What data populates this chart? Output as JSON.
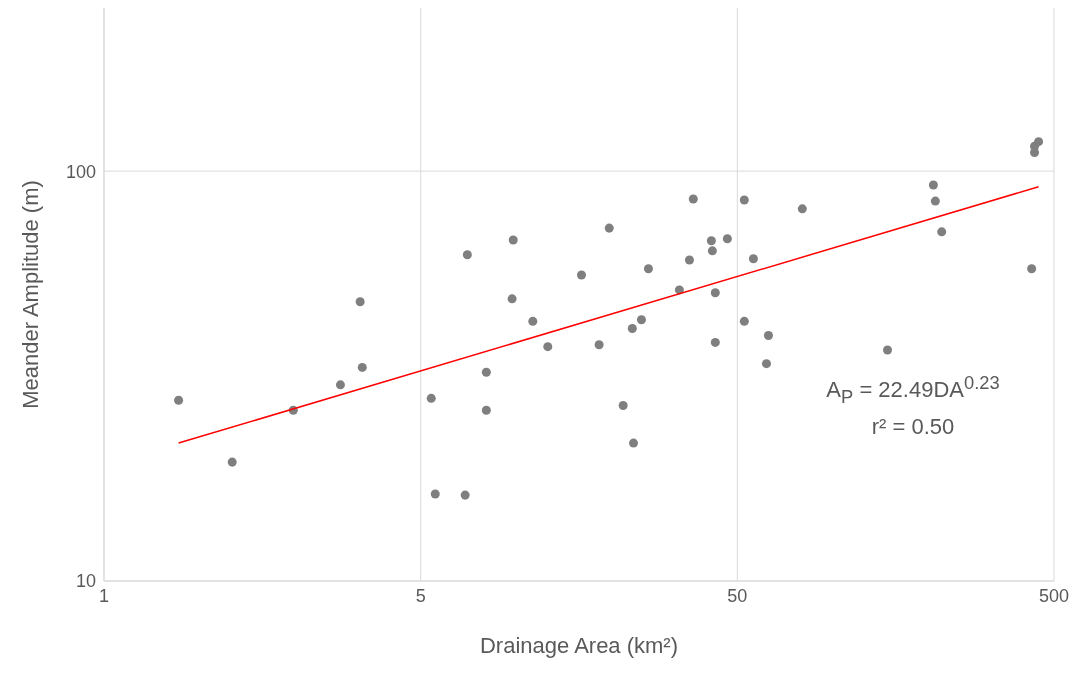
{
  "chart_data": {
    "type": "scatter",
    "xlabel": "Drainage Area (km²)",
    "ylabel": "Meander Amplitude (m)",
    "log": "xy",
    "xlim": [
      0.5,
      500
    ],
    "xticks": [
      {
        "value": 0.5,
        "label": "1"
      },
      5,
      50,
      500
    ],
    "ylim": [
      10,
      250
    ],
    "yticks": [
      10,
      100
    ],
    "grid": true,
    "annotations": [
      "A$_{P}$ = 22.49DA$^{0.23}$",
      "r² = 0.50"
    ],
    "series": [
      {
        "color": "#7f7f7f",
        "marker": "circle",
        "x": [
          0.86,
          1.27,
          1.98,
          2.79,
          3.22,
          3.27,
          5.4,
          5.56,
          6.91,
          7.02,
          8.06,
          8.06,
          9.72,
          9.8,
          11.3,
          12.6,
          16.1,
          18.3,
          19.7,
          21.8,
          23.3,
          23.5,
          24.9,
          26.2,
          32.8,
          35.3,
          36.3,
          41.4,
          41.7,
          42.6,
          42.6,
          46.5,
          52.6,
          52.6,
          56.2,
          61.8,
          62.7,
          80.2,
          149,
          208,
          211,
          221,
          425,
          434,
          434,
          447
        ],
        "values": [
          27.6,
          19.5,
          26.1,
          30.1,
          48,
          33.2,
          27.9,
          16.3,
          16.2,
          62.5,
          32.3,
          26.1,
          48.8,
          67.9,
          43,
          37.3,
          55.8,
          37.7,
          72.6,
          26.8,
          41.3,
          21.7,
          43.4,
          57.8,
          51.3,
          60.7,
          85.5,
          67.6,
          63.9,
          50.5,
          38.2,
          68.4,
          85,
          43,
          61.1,
          33.9,
          39.7,
          80.9,
          36.6,
          92.5,
          84.5,
          71.1,
          57.8,
          115,
          111,
          118
        ]
      },
      {
        "type": "line",
        "color": "#ff0000",
        "line_style": "solid",
        "marker": "none",
        "x": [
          0.86,
          447
        ],
        "values": [
          21.7,
          91.6
        ]
      }
    ]
  }
}
